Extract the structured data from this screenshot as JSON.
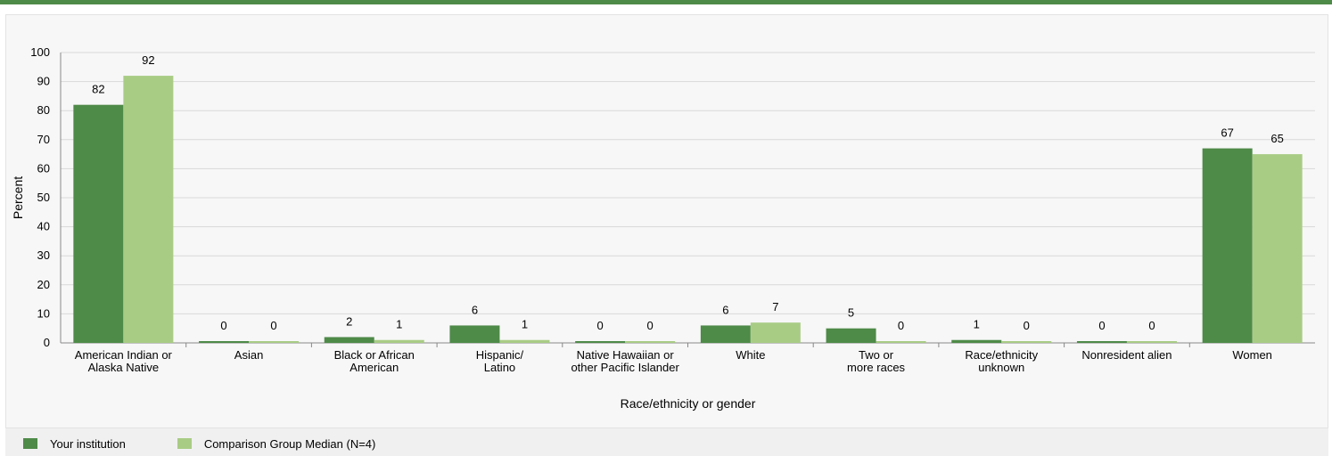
{
  "colors": {
    "institution": "#4e8a48",
    "comparison": "#a9cc85",
    "accent_bar": "#4e8a48",
    "grid": "#d9d9d9",
    "axis": "#888888"
  },
  "legend": {
    "items": [
      {
        "label": "Your institution",
        "color": "#4e8a48"
      },
      {
        "label": "Comparison Group Median (N=4)",
        "color": "#a9cc85"
      }
    ]
  },
  "chart_data": {
    "type": "bar",
    "xlabel": "Race/ethnicity or gender",
    "ylabel": "Percent",
    "ylim": [
      0,
      100
    ],
    "yticks": [
      0,
      10,
      20,
      30,
      40,
      50,
      60,
      70,
      80,
      90,
      100
    ],
    "grid": true,
    "legend_position": "bottom-left",
    "categories": [
      [
        "American Indian or",
        "Alaska Native"
      ],
      [
        "Asian"
      ],
      [
        "Black or African",
        "American"
      ],
      [
        "Hispanic/",
        "Latino"
      ],
      [
        "Native Hawaiian or",
        "other Pacific Islander"
      ],
      [
        "White"
      ],
      [
        "Two or",
        "more races"
      ],
      [
        "Race/ethnicity",
        "unknown"
      ],
      [
        "Nonresident alien"
      ],
      [
        "Women"
      ]
    ],
    "series": [
      {
        "name": "Your institution",
        "values": [
          82,
          0,
          2,
          6,
          0,
          6,
          5,
          1,
          0,
          67
        ]
      },
      {
        "name": "Comparison Group Median (N=4)",
        "values": [
          92,
          0,
          1,
          1,
          0,
          7,
          0,
          0,
          0,
          65
        ]
      }
    ]
  }
}
